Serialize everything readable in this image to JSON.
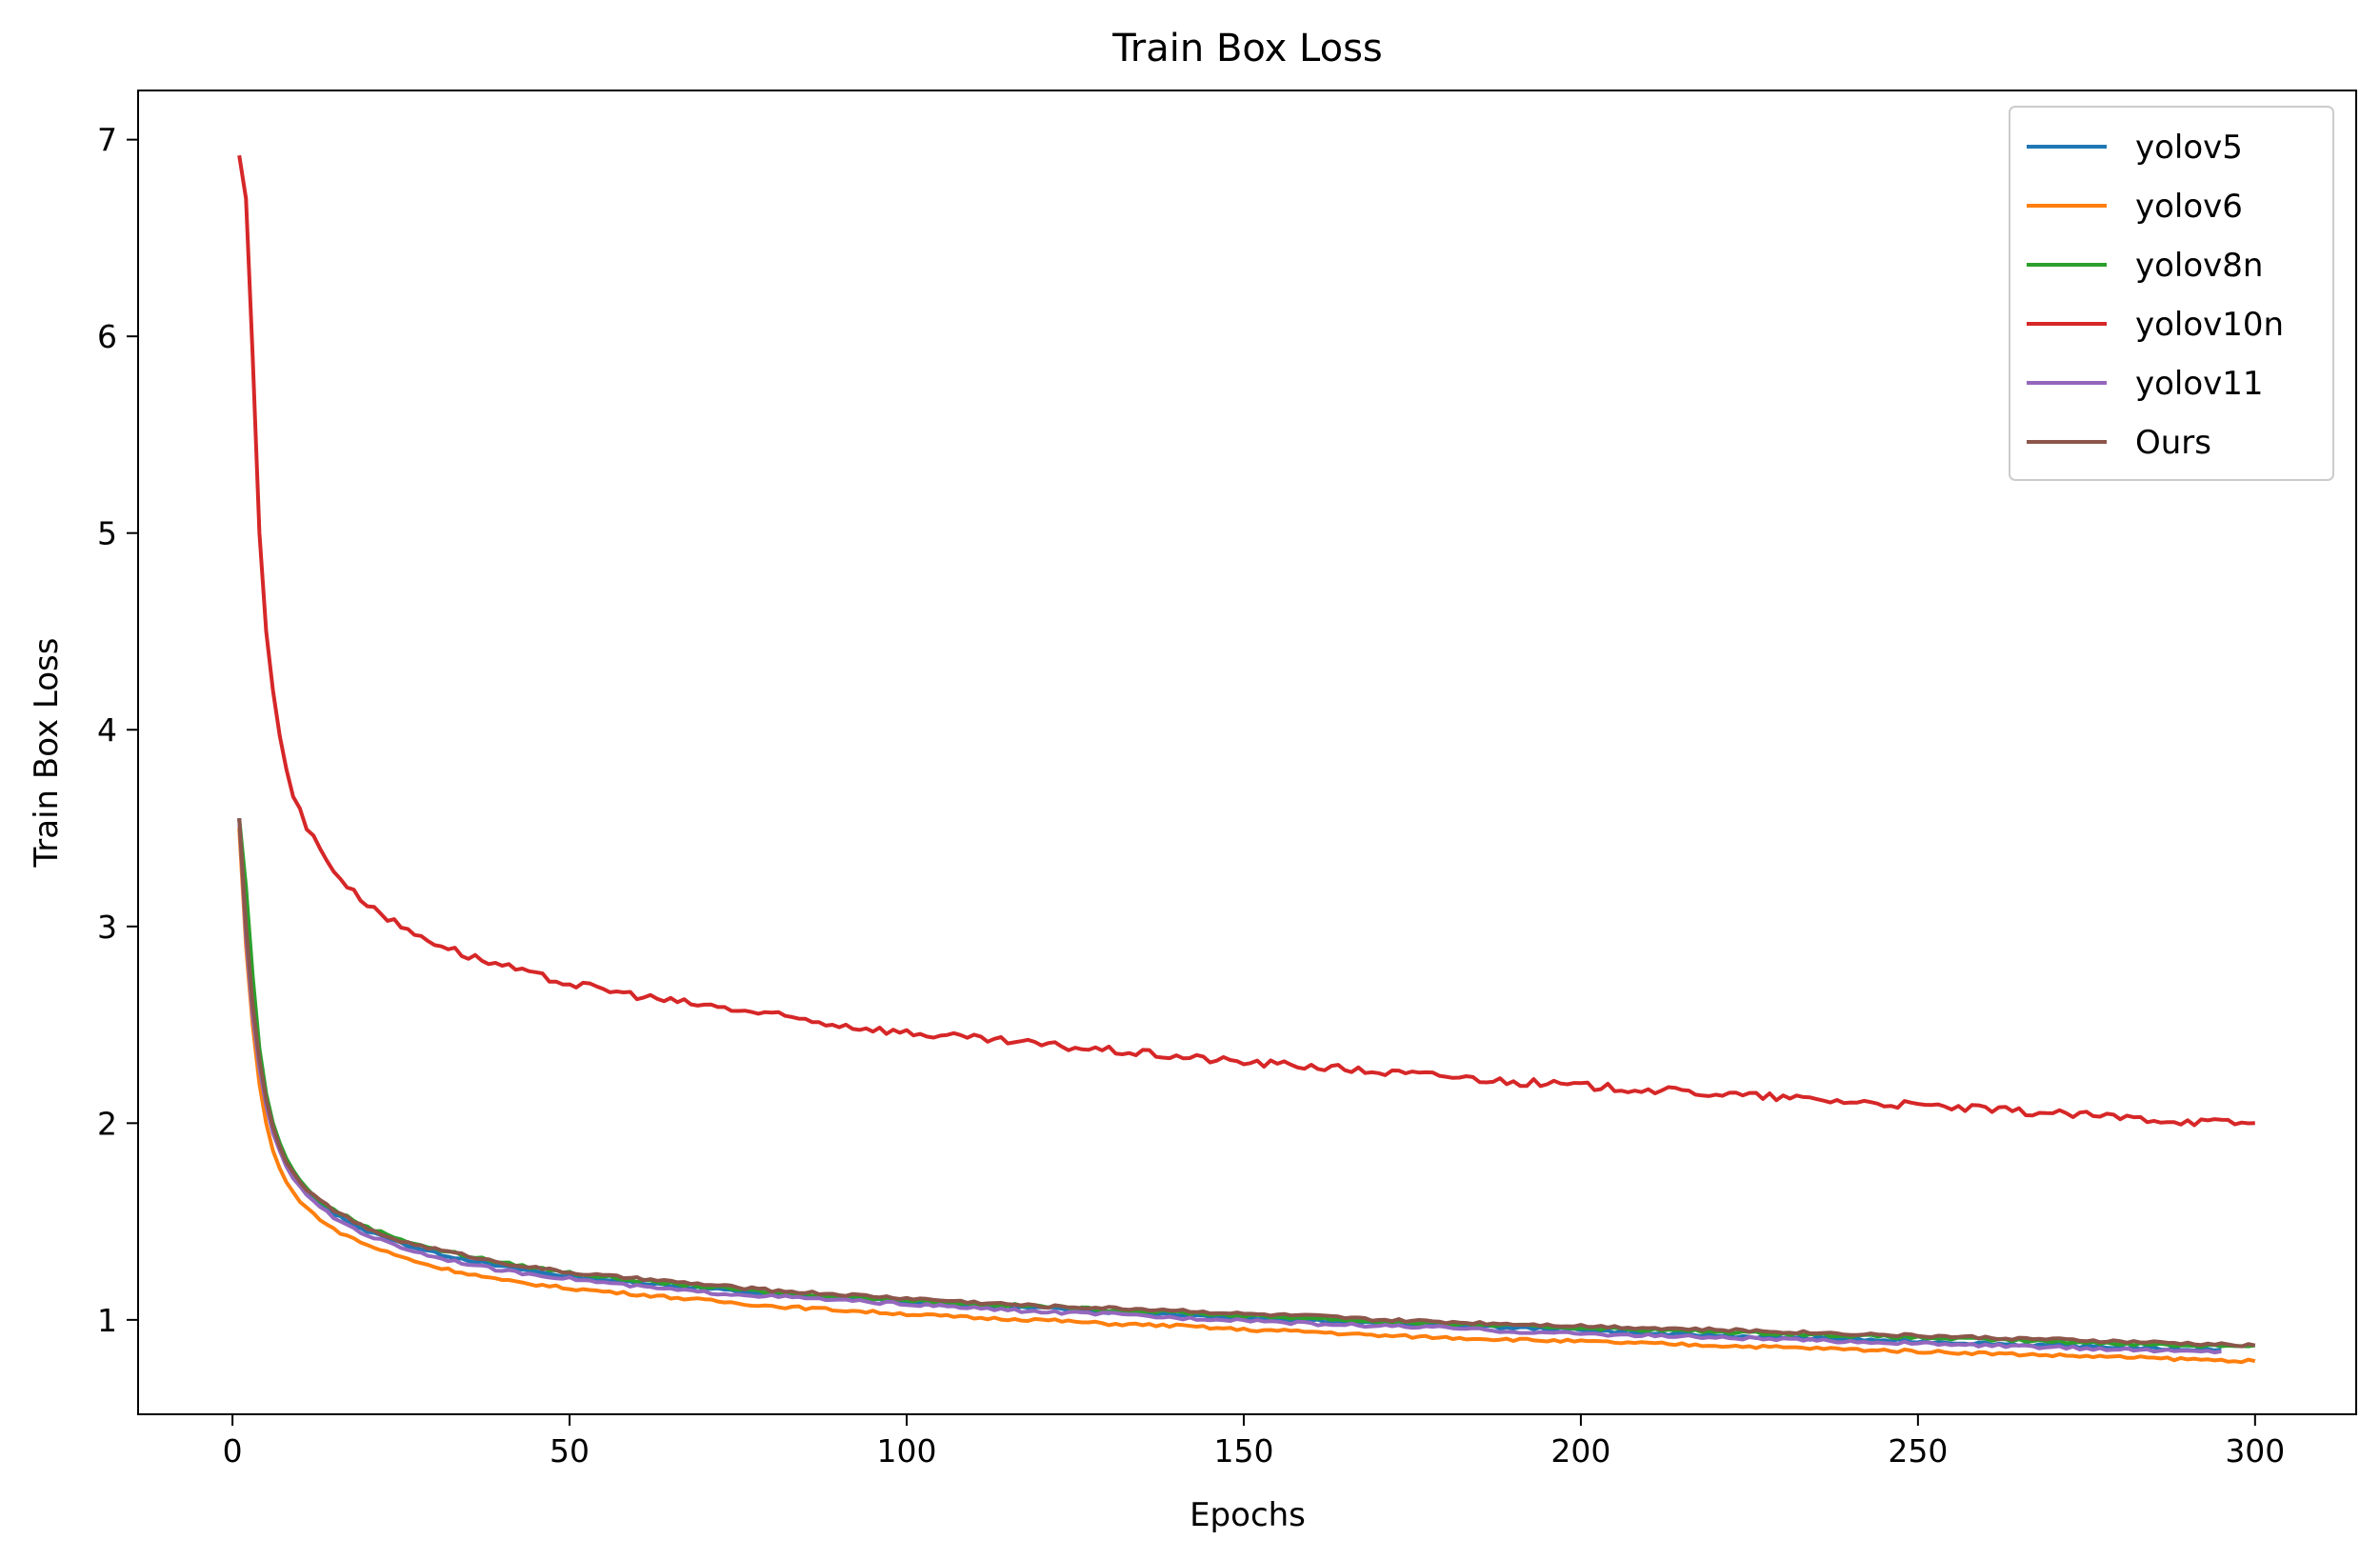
{
  "chart_data": {
    "type": "line",
    "title": "Train Box Loss",
    "xlabel": "Epochs",
    "ylabel": "Train Box Loss",
    "xlim": [
      -14,
      315
    ],
    "ylim": [
      0.52,
      7.25
    ],
    "xticks": [
      0,
      50,
      100,
      150,
      200,
      250,
      300
    ],
    "yticks": [
      1,
      2,
      3,
      4,
      5,
      6,
      7
    ],
    "grid": false,
    "legend_position": "top-right",
    "series": [
      {
        "name": "yolov5",
        "color": "#1f77b4",
        "x": [
          1,
          2,
          3,
          4,
          5,
          6,
          7,
          8,
          9,
          10,
          12,
          15,
          20,
          25,
          30,
          40,
          50,
          60,
          70,
          80,
          90,
          100,
          110,
          120,
          130,
          140,
          150,
          160,
          170,
          180,
          190,
          200,
          210,
          220,
          230,
          240,
          250,
          260,
          270,
          280,
          290,
          295
        ],
        "values": [
          3.55,
          3.0,
          2.62,
          2.33,
          2.13,
          1.98,
          1.88,
          1.8,
          1.74,
          1.7,
          1.62,
          1.54,
          1.45,
          1.39,
          1.34,
          1.27,
          1.22,
          1.19,
          1.16,
          1.13,
          1.11,
          1.09,
          1.07,
          1.06,
          1.04,
          1.03,
          1.01,
          1.0,
          0.98,
          0.97,
          0.96,
          0.95,
          0.93,
          0.92,
          0.91,
          0.9,
          0.89,
          0.88,
          0.87,
          0.86,
          0.85,
          0.85
        ]
      },
      {
        "name": "yolov6",
        "color": "#ff7f0e",
        "x": [
          1,
          2,
          3,
          4,
          5,
          6,
          7,
          8,
          9,
          10,
          12,
          15,
          20,
          25,
          30,
          40,
          50,
          60,
          70,
          80,
          90,
          100,
          110,
          120,
          130,
          140,
          150,
          160,
          170,
          180,
          190,
          200,
          210,
          220,
          230,
          240,
          250,
          260,
          270,
          280,
          290,
          300
        ],
        "values": [
          3.5,
          2.9,
          2.5,
          2.2,
          2.0,
          1.86,
          1.77,
          1.7,
          1.65,
          1.6,
          1.54,
          1.46,
          1.38,
          1.32,
          1.27,
          1.2,
          1.16,
          1.13,
          1.1,
          1.07,
          1.05,
          1.03,
          1.01,
          1.0,
          0.98,
          0.97,
          0.95,
          0.94,
          0.92,
          0.91,
          0.9,
          0.89,
          0.88,
          0.87,
          0.86,
          0.85,
          0.84,
          0.83,
          0.82,
          0.81,
          0.8,
          0.79
        ]
      },
      {
        "name": "yolov8n",
        "color": "#2ca02c",
        "x": [
          1,
          2,
          3,
          4,
          5,
          6,
          7,
          8,
          9,
          10,
          12,
          15,
          20,
          25,
          30,
          40,
          50,
          60,
          70,
          80,
          90,
          100,
          110,
          120,
          130,
          140,
          150,
          160,
          170,
          180,
          190,
          200,
          210,
          220,
          230,
          240,
          250,
          260,
          270,
          280,
          290,
          300
        ],
        "values": [
          3.55,
          3.2,
          2.75,
          2.38,
          2.15,
          2.0,
          1.9,
          1.82,
          1.76,
          1.71,
          1.63,
          1.56,
          1.47,
          1.41,
          1.36,
          1.29,
          1.24,
          1.2,
          1.17,
          1.14,
          1.12,
          1.1,
          1.08,
          1.07,
          1.05,
          1.04,
          1.02,
          1.01,
          0.99,
          0.98,
          0.97,
          0.96,
          0.95,
          0.94,
          0.93,
          0.92,
          0.91,
          0.9,
          0.89,
          0.88,
          0.87,
          0.87
        ]
      },
      {
        "name": "yolov10n",
        "color": "#d62728",
        "x": [
          1,
          2,
          3,
          4,
          5,
          6,
          7,
          8,
          9,
          10,
          11,
          12,
          13,
          14,
          15,
          16,
          18,
          20,
          22,
          24,
          26,
          28,
          30,
          35,
          40,
          45,
          50,
          55,
          60,
          65,
          70,
          80,
          90,
          100,
          110,
          120,
          130,
          140,
          150,
          160,
          170,
          180,
          190,
          200,
          210,
          220,
          230,
          240,
          250,
          260,
          270,
          280,
          290,
          300
        ],
        "values": [
          6.92,
          6.7,
          5.9,
          5.0,
          4.5,
          4.2,
          3.97,
          3.8,
          3.66,
          3.6,
          3.5,
          3.45,
          3.4,
          3.35,
          3.28,
          3.25,
          3.17,
          3.12,
          3.07,
          3.02,
          2.98,
          2.95,
          2.92,
          2.85,
          2.8,
          2.75,
          2.71,
          2.68,
          2.65,
          2.62,
          2.6,
          2.55,
          2.5,
          2.46,
          2.43,
          2.4,
          2.37,
          2.34,
          2.31,
          2.29,
          2.26,
          2.24,
          2.21,
          2.19,
          2.17,
          2.15,
          2.13,
          2.11,
          2.09,
          2.07,
          2.05,
          2.03,
          2.01,
          2.0
        ]
      },
      {
        "name": "yolov11",
        "color": "#9467bd",
        "x": [
          1,
          2,
          3,
          4,
          5,
          6,
          7,
          8,
          9,
          10,
          12,
          15,
          20,
          25,
          30,
          40,
          50,
          60,
          70,
          80,
          90,
          100,
          110,
          120,
          130,
          140,
          150,
          160,
          170,
          180,
          190,
          200,
          210,
          220,
          230,
          240,
          250,
          260,
          270,
          280,
          290,
          295
        ],
        "values": [
          3.55,
          2.95,
          2.55,
          2.28,
          2.09,
          1.95,
          1.86,
          1.78,
          1.72,
          1.68,
          1.6,
          1.52,
          1.43,
          1.37,
          1.32,
          1.25,
          1.21,
          1.17,
          1.14,
          1.12,
          1.1,
          1.08,
          1.06,
          1.04,
          1.03,
          1.01,
          1.0,
          0.98,
          0.97,
          0.96,
          0.94,
          0.93,
          0.92,
          0.91,
          0.9,
          0.89,
          0.88,
          0.87,
          0.86,
          0.85,
          0.84,
          0.84
        ]
      },
      {
        "name": "Ours",
        "color": "#8c564b",
        "x": [
          1,
          2,
          3,
          4,
          5,
          6,
          7,
          8,
          9,
          10,
          12,
          15,
          20,
          25,
          30,
          40,
          50,
          60,
          70,
          80,
          90,
          100,
          110,
          120,
          130,
          140,
          150,
          160,
          170,
          180,
          190,
          200,
          210,
          220,
          230,
          240,
          250,
          260,
          270,
          280,
          290,
          300
        ],
        "values": [
          3.55,
          3.0,
          2.6,
          2.32,
          2.12,
          1.98,
          1.88,
          1.8,
          1.75,
          1.7,
          1.63,
          1.56,
          1.46,
          1.4,
          1.36,
          1.29,
          1.24,
          1.21,
          1.18,
          1.15,
          1.13,
          1.11,
          1.09,
          1.07,
          1.06,
          1.05,
          1.03,
          1.02,
          1.0,
          0.99,
          0.98,
          0.97,
          0.96,
          0.95,
          0.94,
          0.93,
          0.92,
          0.91,
          0.9,
          0.89,
          0.88,
          0.87
        ]
      }
    ]
  }
}
